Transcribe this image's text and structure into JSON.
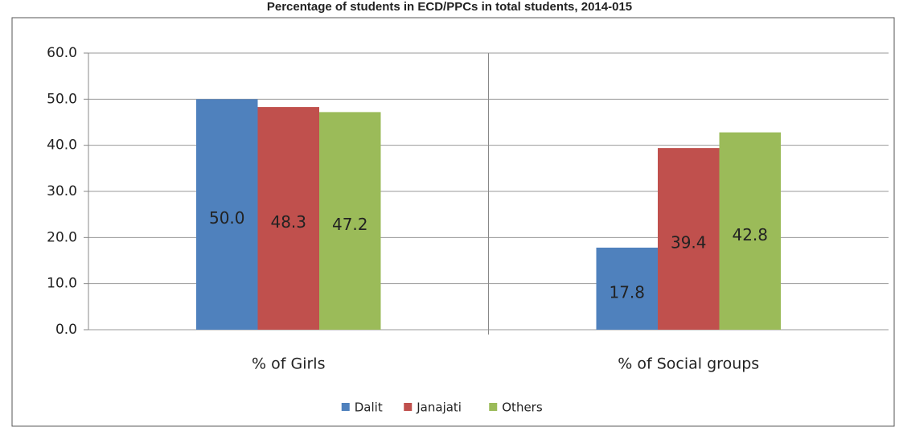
{
  "chart_data": {
    "type": "bar",
    "title": "Percentage of students in ECD/PPCs in total students, 2014-015",
    "categories": [
      "% of Girls",
      "% of Social groups"
    ],
    "series": [
      {
        "name": "Dalit",
        "color": "#4f81bd",
        "values": [
          50.0,
          17.8
        ],
        "value_labels": [
          "50.0",
          "17.8"
        ]
      },
      {
        "name": "Janajati",
        "color": "#c0504d",
        "values": [
          48.3,
          39.4
        ],
        "value_labels": [
          "48.3",
          "39.4"
        ]
      },
      {
        "name": "Others",
        "color": "#9bbb59",
        "values": [
          47.2,
          42.8
        ],
        "value_labels": [
          "47.2",
          "42.8"
        ]
      }
    ],
    "ylim": [
      0,
      60
    ],
    "yticks": [
      {
        "value": 0,
        "label": "0.0"
      },
      {
        "value": 10,
        "label": "10.0"
      },
      {
        "value": 20,
        "label": "20.0"
      },
      {
        "value": 30,
        "label": "30.0"
      },
      {
        "value": 40,
        "label": "40.0"
      },
      {
        "value": 50,
        "label": "50.0"
      },
      {
        "value": 60,
        "label": "60.0"
      }
    ],
    "grid": true,
    "legend": "bottom"
  }
}
